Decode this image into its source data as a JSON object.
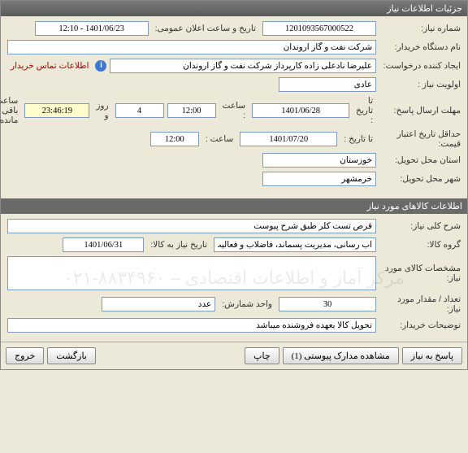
{
  "titlebar": {
    "title": "جزئیات اطلاعات نیاز"
  },
  "section1": {
    "need_no_label": "شماره نیاز:",
    "need_no": "1201093567000522",
    "announce_label": "تاریخ و ساعت اعلان عمومی:",
    "announce_value": "1401/06/23 - 12:10",
    "buyer_label": "نام دستگاه خریدار:",
    "buyer_value": "شرکت نفت و گاز اروندان",
    "creator_label": "ایجاد کننده درخواست:",
    "creator_value": "علیرضا نادعلی زاده کارپرداز شرکت نفت و گاز اروندان",
    "contact_note": "اطلاعات تماس خریدار",
    "priority_label": "اولویت نیاز :",
    "priority_value": "عادی",
    "deadline_label": "مهلت ارسال پاسخ:",
    "to_date_label": "تا تاریخ :",
    "deadline_date": "1401/06/28",
    "time_label": "ساعت :",
    "deadline_time": "12:00",
    "days_value": "4",
    "days_label": "روز و",
    "countdown": "23:46:19",
    "remain_label": "ساعت باقی مانده",
    "price_valid_label": "حداقل تاریخ اعتبار قیمت:",
    "price_valid_date": "1401/07/20",
    "price_valid_time": "12:00",
    "province_label": "استان محل تحویل:",
    "province_value": "خوزستان",
    "city_label": "شهر محل تحویل:",
    "city_value": "خرمشهر"
  },
  "section2": {
    "header": "اطلاعات کالاهای مورد نیاز",
    "desc_label": "شرح کلی نیاز:",
    "desc_value": "قرص تست کلر طبق شرح پیوست",
    "group_label": "گروه کالا:",
    "group_value": "آب رسانی، مدیریت پسماند، فاضلاب و فعالیت ها…",
    "need_date_label": "تاریخ نیاز به کالا:",
    "need_date_value": "1401/06/31",
    "spec_label": "مشخصات کالای مورد نیاز:",
    "qty_label": "تعداد / مقدار مورد نیاز:",
    "qty_value": "30",
    "unit_label": "واحد شمارش:",
    "unit_value": "عدد",
    "buyer_note_label": "توضیحات خریدار:",
    "buyer_note_value": "تحویل کالا بعهده فروشنده میباشد",
    "watermark": "مرکز آمار و اطلاعات اقتصادی – ۸۸۳۴۹۶۰-۰۲۱"
  },
  "buttons": {
    "respond": "پاسخ به نیاز",
    "attachments": "مشاهده مدارک پیوستی (1)",
    "print": "چاپ",
    "back": "بازگشت",
    "exit": "خروج"
  }
}
